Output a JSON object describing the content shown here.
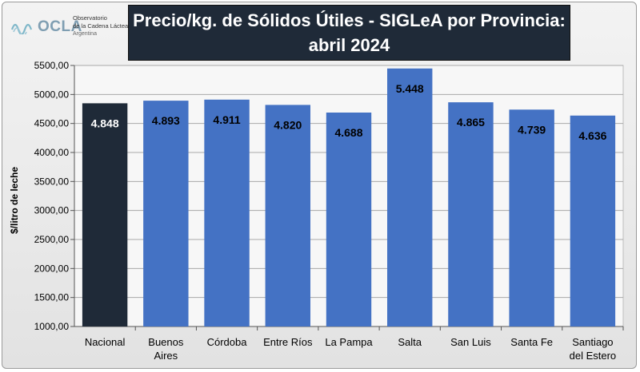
{
  "logo": {
    "wordmark": "OCLA",
    "line1": "Observatorio",
    "line2": "de la Cadena Láctea",
    "line3": "Argentina"
  },
  "chart_data": {
    "type": "bar",
    "title_line1": "Precio/kg. de Sólidos Útiles - SIGLeA por Provincia:",
    "title_line2": "abril 2024",
    "ylabel": "$/litro de leche",
    "xlabel": "",
    "ylim": [
      1000,
      5500
    ],
    "yticks": [
      "1000,00",
      "1500,00",
      "2000,00",
      "2500,00",
      "3000,00",
      "3500,00",
      "4000,00",
      "4500,00",
      "5000,00",
      "5500,00"
    ],
    "ytick_values": [
      1000,
      1500,
      2000,
      2500,
      3000,
      3500,
      4000,
      4500,
      5000,
      5500
    ],
    "categories": [
      [
        "Nacional"
      ],
      [
        "Buenos",
        "Aires"
      ],
      [
        "Córdoba"
      ],
      [
        "Entre Ríos"
      ],
      [
        "La Pampa"
      ],
      [
        "Salta"
      ],
      [
        "San Luis"
      ],
      [
        "Santa Fe"
      ],
      [
        "Santiago",
        "del Estero"
      ]
    ],
    "values": [
      4848,
      4893,
      4911,
      4820,
      4688,
      5448,
      4865,
      4739,
      4636
    ],
    "value_labels": [
      "4.848",
      "4.893",
      "4.911",
      "4.820",
      "4.688",
      "5.448",
      "4.865",
      "4.739",
      "4.636"
    ],
    "grid": true,
    "colors": {
      "highlight": "#1f2a38",
      "bar": "#4472c4",
      "grid": "#a8a8a8",
      "plot_bg": "#f7f7f7"
    },
    "highlight_index": 0
  }
}
